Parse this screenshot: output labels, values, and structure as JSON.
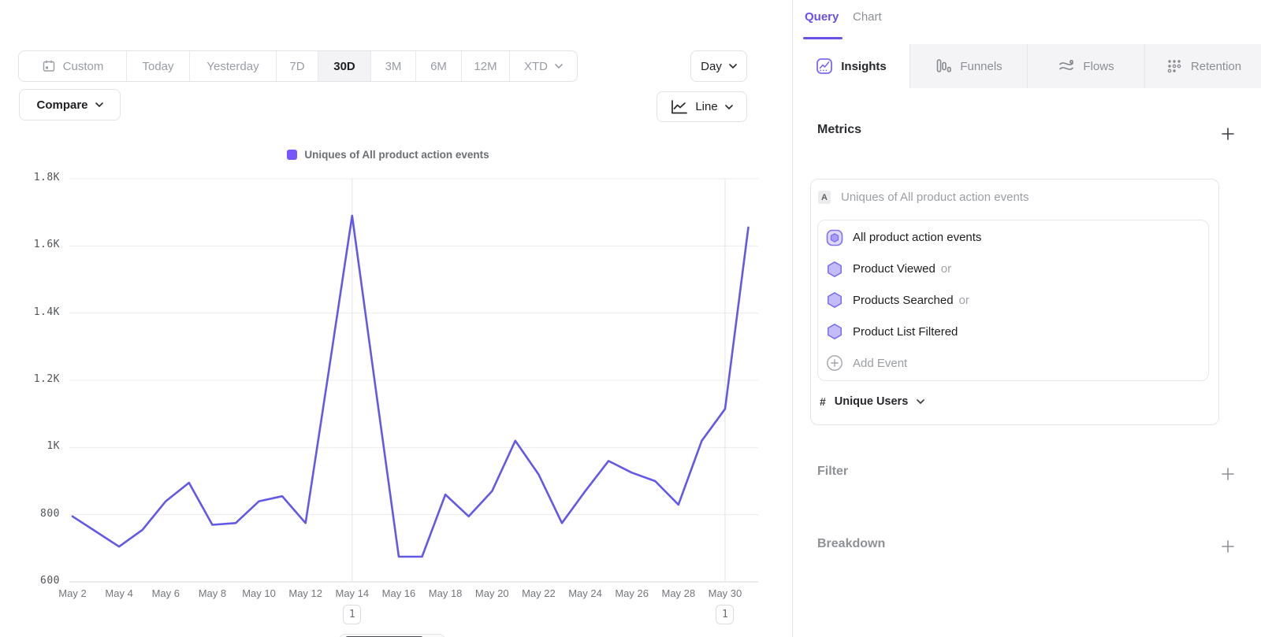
{
  "colors": {
    "accent_purple": "#6950e8",
    "line_purple": "#6358e8",
    "legend_swatch_purple": "#7856ff"
  },
  "toolbar": {
    "ranges": [
      {
        "label": "Custom"
      },
      {
        "label": "Today"
      },
      {
        "label": "Yesterday"
      },
      {
        "label": "7D"
      },
      {
        "label": "30D"
      },
      {
        "label": "3M"
      },
      {
        "label": "6M"
      },
      {
        "label": "12M"
      },
      {
        "label": "XTD"
      }
    ],
    "active_range": "30D",
    "granularity_label": "Day",
    "compare_label": "Compare",
    "chart_type_label": "Line"
  },
  "chart_data": {
    "type": "line",
    "title": "Uniques of All product action events",
    "x": [
      "May 2",
      "May 3",
      "May 4",
      "May 5",
      "May 6",
      "May 7",
      "May 8",
      "May 9",
      "May 10",
      "May 11",
      "May 12",
      "May 13",
      "May 14",
      "May 15",
      "May 16",
      "May 17",
      "May 18",
      "May 19",
      "May 20",
      "May 21",
      "May 22",
      "May 23",
      "May 24",
      "May 25",
      "May 26",
      "May 27",
      "May 28",
      "May 29",
      "May 30",
      "May 31"
    ],
    "series": [
      {
        "name": "Uniques of All product action events",
        "color": "#6358e8",
        "values": [
          795,
          750,
          705,
          755,
          840,
          895,
          770,
          775,
          840,
          855,
          775,
          1230,
          1690,
          1180,
          675,
          675,
          860,
          795,
          870,
          1020,
          920,
          775,
          870,
          960,
          925,
          900,
          830,
          1020,
          1115,
          1655
        ]
      }
    ],
    "x_tick_labels": [
      "May 2",
      "May 4",
      "May 6",
      "May 8",
      "May 10",
      "May 12",
      "May 14",
      "May 16",
      "May 18",
      "May 20",
      "May 22",
      "May 24",
      "May 26",
      "May 28",
      "May 30"
    ],
    "y_tick_labels": [
      "1.8K",
      "1.6K",
      "1.4K",
      "1.2K",
      "1K",
      "800",
      "600"
    ],
    "ylim": [
      600,
      1800
    ],
    "grid": true,
    "legend_position": "top",
    "annotations": [
      {
        "x": "May 14",
        "label": "1"
      },
      {
        "x": "May 30",
        "label": "1"
      }
    ]
  },
  "query_panel": {
    "top_tabs": {
      "query": "Query",
      "chart": "Chart"
    },
    "report_tabs": [
      {
        "label": "Insights"
      },
      {
        "label": "Funnels"
      },
      {
        "label": "Flows"
      },
      {
        "label": "Retention"
      }
    ],
    "active_report_tab": "Insights",
    "metrics": {
      "header": "Metrics",
      "metric_letter": "A",
      "metric_title": "Uniques of All product action events",
      "events": [
        {
          "name": "All product action events",
          "suffix": ""
        },
        {
          "name": "Product Viewed",
          "suffix": "or"
        },
        {
          "name": "Products Searched",
          "suffix": "or"
        },
        {
          "name": "Product List Filtered",
          "suffix": ""
        }
      ],
      "add_event_label": "Add Event",
      "aggregation_symbol": "#",
      "aggregation_label": "Unique Users"
    },
    "filter_header": "Filter",
    "breakdown_header": "Breakdown"
  }
}
